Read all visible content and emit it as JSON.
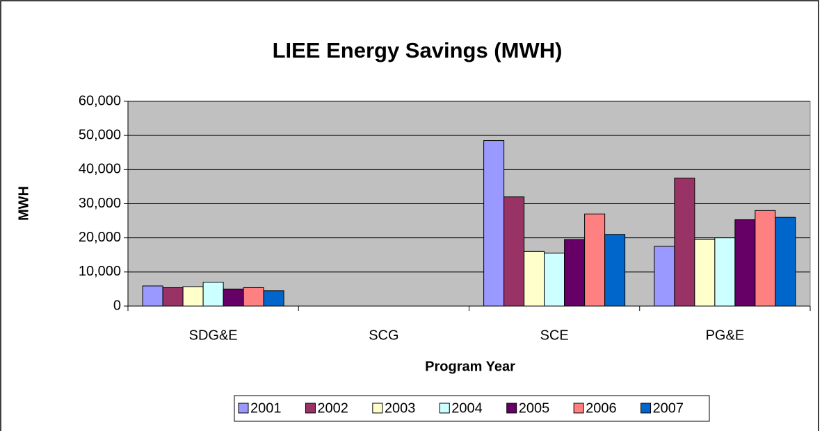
{
  "chart_data": {
    "type": "bar",
    "title": "LIEE Energy Savings (MWH)",
    "y_label": "MWH",
    "x_label": "Program Year",
    "categories": [
      "SDG&E",
      "SCG",
      "SCE",
      "PG&E"
    ],
    "series": [
      {
        "name": "2001",
        "color": "#9999ff",
        "values": [
          5900,
          0,
          48500,
          17500
        ]
      },
      {
        "name": "2002",
        "color": "#993366",
        "values": [
          5400,
          0,
          32000,
          37500
        ]
      },
      {
        "name": "2003",
        "color": "#ffffcc",
        "values": [
          5700,
          0,
          16000,
          19500
        ]
      },
      {
        "name": "2004",
        "color": "#ccffff",
        "values": [
          7000,
          0,
          15500,
          20000
        ]
      },
      {
        "name": "2005",
        "color": "#660066",
        "values": [
          5000,
          0,
          19500,
          25300
        ]
      },
      {
        "name": "2006",
        "color": "#ff8080",
        "values": [
          5400,
          0,
          27000,
          28000
        ]
      },
      {
        "name": "2007",
        "color": "#0066cc",
        "values": [
          4500,
          0,
          21000,
          26000
        ]
      }
    ],
    "ylim": [
      0,
      60000
    ],
    "yticks": [
      0,
      {
        "value": 10000,
        "label": "10,000"
      },
      {
        "value": 20000,
        "label": "20,000"
      },
      {
        "value": 30000,
        "label": "30,000"
      },
      {
        "value": 40000,
        "label": "40,000"
      },
      {
        "value": 50000,
        "label": "50,000"
      },
      {
        "value": 60000,
        "label": "60,000"
      }
    ],
    "grid": true,
    "legend": "bottom"
  }
}
